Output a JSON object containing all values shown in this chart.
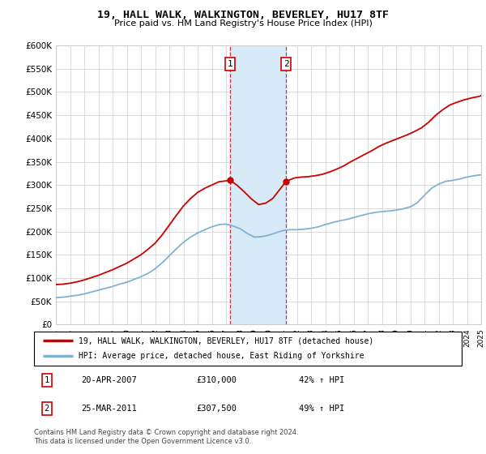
{
  "title": "19, HALL WALK, WALKINGTON, BEVERLEY, HU17 8TF",
  "subtitle": "Price paid vs. HM Land Registry's House Price Index (HPI)",
  "ylim": [
    0,
    600000
  ],
  "xlim_start": 1995,
  "xlim_end": 2025,
  "red_color": "#cc0000",
  "blue_color": "#7fb3d3",
  "shade_color": "#d6eaf8",
  "annotation1": {
    "label": "1",
    "date_str": "20-APR-2007",
    "price": 310000,
    "pct": "42%",
    "year": 2007.3
  },
  "annotation2": {
    "label": "2",
    "date_str": "25-MAR-2011",
    "price": 307500,
    "pct": "49%",
    "year": 2011.23
  },
  "legend_line1": "19, HALL WALK, WALKINGTON, BEVERLEY, HU17 8TF (detached house)",
  "legend_line2": "HPI: Average price, detached house, East Riding of Yorkshire",
  "footer": "Contains HM Land Registry data © Crown copyright and database right 2024.\nThis data is licensed under the Open Government Licence v3.0.",
  "hpi_years": [
    1995.0,
    1995.5,
    1996.0,
    1996.5,
    1997.0,
    1997.5,
    1998.0,
    1998.5,
    1999.0,
    1999.5,
    2000.0,
    2000.5,
    2001.0,
    2001.5,
    2002.0,
    2002.5,
    2003.0,
    2003.5,
    2004.0,
    2004.5,
    2005.0,
    2005.5,
    2006.0,
    2006.5,
    2007.0,
    2007.5,
    2008.0,
    2008.5,
    2009.0,
    2009.5,
    2010.0,
    2010.5,
    2011.0,
    2011.5,
    2012.0,
    2012.5,
    2013.0,
    2013.5,
    2014.0,
    2014.5,
    2015.0,
    2015.5,
    2016.0,
    2016.5,
    2017.0,
    2017.5,
    2018.0,
    2018.5,
    2019.0,
    2019.5,
    2020.0,
    2020.5,
    2021.0,
    2021.5,
    2022.0,
    2022.5,
    2023.0,
    2023.5,
    2024.0,
    2024.5,
    2025.0
  ],
  "hpi_values": [
    58000,
    59000,
    61000,
    63000,
    66000,
    70000,
    74000,
    78000,
    82000,
    87000,
    91000,
    97000,
    103000,
    110000,
    120000,
    133000,
    148000,
    163000,
    177000,
    188000,
    197000,
    204000,
    210000,
    215000,
    216000,
    212000,
    206000,
    196000,
    188000,
    189000,
    192000,
    197000,
    202000,
    204000,
    204000,
    205000,
    207000,
    210000,
    215000,
    219000,
    223000,
    226000,
    230000,
    234000,
    238000,
    241000,
    243000,
    244000,
    246000,
    249000,
    253000,
    262000,
    278000,
    293000,
    302000,
    308000,
    310000,
    313000,
    317000,
    320000,
    322000
  ],
  "red_years": [
    1995.0,
    1995.5,
    1996.0,
    1996.5,
    1997.0,
    1997.5,
    1998.0,
    1998.5,
    1999.0,
    1999.5,
    2000.0,
    2000.5,
    2001.0,
    2001.5,
    2002.0,
    2002.5,
    2003.0,
    2003.5,
    2004.0,
    2004.5,
    2005.0,
    2005.5,
    2006.0,
    2006.5,
    2007.3,
    2007.8,
    2008.3,
    2008.8,
    2009.3,
    2009.8,
    2010.3,
    2011.23,
    2011.8,
    2012.3,
    2012.8,
    2013.3,
    2013.8,
    2014.3,
    2014.8,
    2015.3,
    2015.8,
    2016.3,
    2016.8,
    2017.3,
    2017.8,
    2018.3,
    2018.8,
    2019.3,
    2019.8,
    2020.3,
    2020.8,
    2021.3,
    2021.8,
    2022.3,
    2022.8,
    2023.3,
    2023.8,
    2024.3,
    2024.8,
    2025.0
  ],
  "red_values": [
    86000,
    87000,
    89000,
    92000,
    96000,
    101000,
    106000,
    112000,
    118000,
    125000,
    132000,
    141000,
    150000,
    162000,
    175000,
    193000,
    214000,
    235000,
    255000,
    271000,
    284000,
    293000,
    300000,
    307000,
    310000,
    299000,
    285000,
    270000,
    258000,
    261000,
    271000,
    307500,
    315000,
    317000,
    318000,
    320000,
    323000,
    328000,
    334000,
    341000,
    350000,
    358000,
    366000,
    374000,
    383000,
    390000,
    396000,
    402000,
    408000,
    415000,
    423000,
    435000,
    450000,
    462000,
    472000,
    478000,
    483000,
    487000,
    490000,
    492000
  ]
}
